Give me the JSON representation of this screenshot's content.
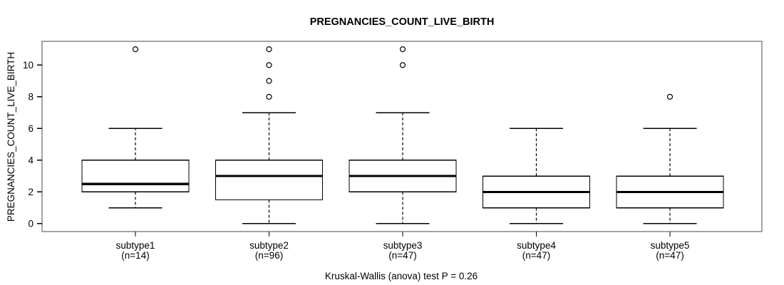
{
  "chart_data": {
    "type": "boxplot",
    "title": "PREGNANCIES_COUNT_LIVE_BIRTH",
    "ylabel": "PREGNANCIES_COUNT_LIVE_BIRTH",
    "xlabel": "",
    "footer": "Kruskal-Wallis (anova) test P = 0.26",
    "yticks": [
      0,
      2,
      4,
      6,
      8,
      10
    ],
    "ylim": [
      0,
      11
    ],
    "grid": "off",
    "legend": "none",
    "groups": [
      {
        "label": "subtype1",
        "n_label": "(n=14)",
        "n": 14,
        "whisker_low": 1,
        "q1": 2,
        "median": 2.5,
        "q3": 4,
        "whisker_high": 6,
        "outliers": [
          11
        ]
      },
      {
        "label": "subtype2",
        "n_label": "(n=96)",
        "n": 96,
        "whisker_low": 0,
        "q1": 1.5,
        "median": 3,
        "q3": 4,
        "whisker_high": 7,
        "outliers": [
          8,
          9,
          10,
          11
        ]
      },
      {
        "label": "subtype3",
        "n_label": "(n=47)",
        "n": 47,
        "whisker_low": 0,
        "q1": 2,
        "median": 3,
        "q3": 4,
        "whisker_high": 7,
        "outliers": [
          10,
          11
        ]
      },
      {
        "label": "subtype4",
        "n_label": "(n=47)",
        "n": 47,
        "whisker_low": 0,
        "q1": 1,
        "median": 2,
        "q3": 3,
        "whisker_high": 6,
        "outliers": []
      },
      {
        "label": "subtype5",
        "n_label": "(n=47)",
        "n": 47,
        "whisker_low": 0,
        "q1": 1,
        "median": 2,
        "q3": 3,
        "whisker_high": 6,
        "outliers": [
          8
        ]
      }
    ],
    "colors": {
      "background": "#ffffff",
      "frame": "#7d7d7d",
      "line": "#000000",
      "box_fill": "#ffffff",
      "text": "#000000"
    }
  }
}
